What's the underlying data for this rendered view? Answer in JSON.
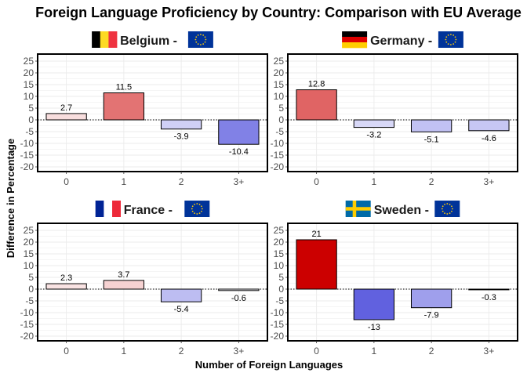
{
  "title": "Foreign Language Proficiency by Country: Comparison with EU Average",
  "ylabel": "Difference in Percentage",
  "xlabel": "Number of Foreign Languages",
  "panel_suffix": "-",
  "chart_data": [
    {
      "type": "bar",
      "country": "Belgium",
      "flag": "belgium-flag",
      "categories": [
        "0",
        "1",
        "2",
        "3+"
      ],
      "values": [
        2.7,
        11.5,
        -3.9,
        -10.4
      ],
      "ylim": [
        -22,
        28
      ],
      "yticks": [
        -20,
        -15,
        -10,
        -5,
        0,
        5,
        10,
        15,
        20,
        25
      ],
      "grid": true
    },
    {
      "type": "bar",
      "country": "Germany",
      "flag": "germany-flag",
      "categories": [
        "0",
        "1",
        "2",
        "3+"
      ],
      "values": [
        12.8,
        -3.2,
        -5.1,
        -4.6
      ],
      "ylim": [
        -22,
        28
      ],
      "yticks": [
        -20,
        -15,
        -10,
        -5,
        0,
        5,
        10,
        15,
        20,
        25
      ],
      "grid": true
    },
    {
      "type": "bar",
      "country": "France",
      "flag": "france-flag",
      "categories": [
        "0",
        "1",
        "2",
        "3+"
      ],
      "values": [
        2.3,
        3.7,
        -5.4,
        -0.6
      ],
      "ylim": [
        -22,
        28
      ],
      "yticks": [
        -20,
        -15,
        -10,
        -5,
        0,
        5,
        10,
        15,
        20,
        25
      ],
      "grid": true
    },
    {
      "type": "bar",
      "country": "Sweden",
      "flag": "sweden-flag",
      "categories": [
        "0",
        "1",
        "2",
        "3+"
      ],
      "values": [
        21,
        -13,
        -7.9,
        -0.3
      ],
      "ylim": [
        -22,
        28
      ],
      "yticks": [
        -20,
        -15,
        -10,
        -5,
        0,
        5,
        10,
        15,
        20,
        25
      ],
      "grid": true
    }
  ],
  "colors": {
    "positive_max": "#cc0000",
    "negative_max": "#0000cc",
    "neutral": "#ffffff",
    "grid": "#ebebeb",
    "zero_line": "#000000"
  },
  "color_scale_limit": 21
}
